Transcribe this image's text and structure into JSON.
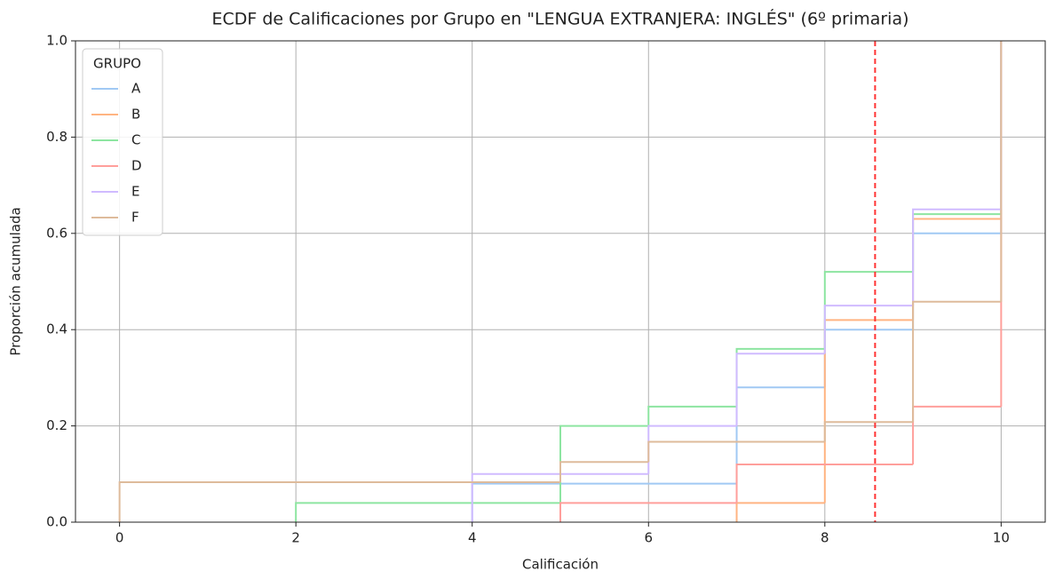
{
  "chart_data": {
    "type": "ecdf",
    "title": "ECDF de Calificaciones por Grupo en \"LENGUA EXTRANJERA: INGLÉS\" (6º primaria)",
    "xlabel": "Calificación",
    "ylabel": "Proporción acumulada",
    "xlim": [
      -0.5,
      10.5
    ],
    "ylim": [
      0,
      1
    ],
    "xticks": [
      0,
      2,
      4,
      6,
      8,
      10
    ],
    "yticks": [
      {
        "value": 0,
        "label": "0.0"
      },
      0.2,
      0.4,
      0.6,
      0.8,
      {
        "value": 1,
        "label": "1.0"
      }
    ],
    "grid": true,
    "legend": "upper left",
    "legend_title": "GRUPO",
    "vline": {
      "x": 8.57,
      "color": "#ff3333"
    },
    "series": [
      {
        "name": "A",
        "color": "#a1c9f4",
        "x": [
          4,
          7,
          8,
          9,
          10
        ],
        "values": [
          0.08,
          0.28,
          0.4,
          0.6,
          1.0
        ]
      },
      {
        "name": "B",
        "color": "#ffb482",
        "x": [
          7,
          8,
          9,
          10
        ],
        "values": [
          0.04,
          0.42,
          0.63,
          1.0
        ]
      },
      {
        "name": "C",
        "color": "#8de5a1",
        "x": [
          2,
          5,
          6,
          7,
          8,
          9,
          10
        ],
        "values": [
          0.04,
          0.2,
          0.24,
          0.36,
          0.52,
          0.64,
          1.0
        ]
      },
      {
        "name": "D",
        "color": "#ff9f9b",
        "x": [
          5,
          7,
          9,
          10
        ],
        "values": [
          0.04,
          0.12,
          0.24,
          1.0
        ]
      },
      {
        "name": "E",
        "color": "#d0bbff",
        "x": [
          4,
          6,
          7,
          8,
          9,
          10
        ],
        "values": [
          0.1,
          0.2,
          0.35,
          0.45,
          0.65,
          1.0
        ]
      },
      {
        "name": "F",
        "color": "#debb9b",
        "x": [
          0,
          5,
          6,
          8,
          9,
          10
        ],
        "values": [
          0.083,
          0.125,
          0.167,
          0.208,
          0.458,
          1.0
        ]
      }
    ]
  }
}
